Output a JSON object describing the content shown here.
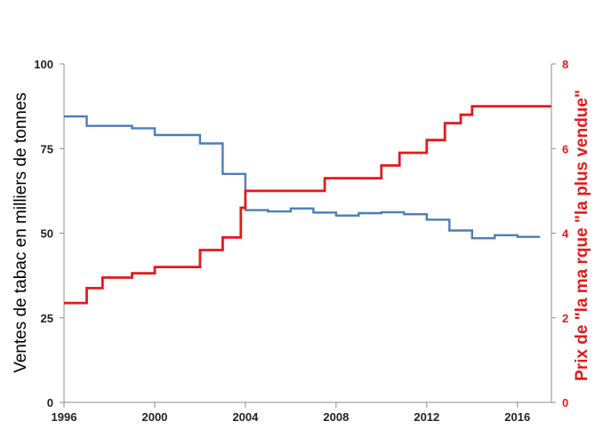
{
  "colors": {
    "left_series": "#4a7ebb",
    "right_series": "#e31a1c",
    "axis": "#8c8c8c"
  },
  "chart_data": {
    "type": "line",
    "step": true,
    "x_ticks": [
      "1996",
      "2000",
      "2004",
      "2008",
      "2012",
      "2016"
    ],
    "xlim": [
      1996,
      2017.5
    ],
    "ylabel_left": "Ventes de tabac en milliers de tonnes",
    "ylabel_right": "Prix de \"la ma rque \"la plus vendue\"",
    "y_left_ticks": [
      "0",
      "25",
      "50",
      "75",
      "100"
    ],
    "y_left_lim": [
      0,
      100
    ],
    "y_right_ticks": [
      "0",
      "2",
      "4",
      "6",
      "8"
    ],
    "y_right_lim": [
      0,
      8
    ],
    "grid": false,
    "series": [
      {
        "axis": "left",
        "x": [
          1996,
          1997,
          1998,
          1999,
          2000,
          2001,
          2002,
          2003,
          2004,
          2005,
          2006,
          2007,
          2008,
          2009,
          2010,
          2011,
          2012,
          2013,
          2014,
          2015,
          2016,
          2017
        ],
        "y": [
          84.5,
          81.7,
          81.7,
          81.0,
          79.0,
          79.0,
          76.5,
          67.5,
          56.8,
          56.4,
          57.3,
          56.1,
          55.2,
          55.9,
          56.2,
          55.6,
          54.0,
          50.8,
          48.5,
          49.4,
          48.9,
          48.9
        ]
      },
      {
        "axis": "right",
        "x": [
          1996,
          1997,
          1997.7,
          1998,
          1999,
          2000,
          2001,
          2002,
          2003,
          2003.8,
          2004,
          2005,
          2006,
          2007,
          2007.5,
          2008,
          2009,
          2010,
          2010.8,
          2011,
          2012,
          2012.8,
          2013.5,
          2014,
          2015,
          2016,
          2017.5
        ],
        "y": [
          2.35,
          2.7,
          2.95,
          2.95,
          3.05,
          3.2,
          3.2,
          3.6,
          3.9,
          4.6,
          5.0,
          5.0,
          5.0,
          5.0,
          5.3,
          5.3,
          5.3,
          5.6,
          5.9,
          5.9,
          6.2,
          6.6,
          6.8,
          7.0,
          7.0,
          7.0,
          7.0
        ]
      }
    ]
  }
}
